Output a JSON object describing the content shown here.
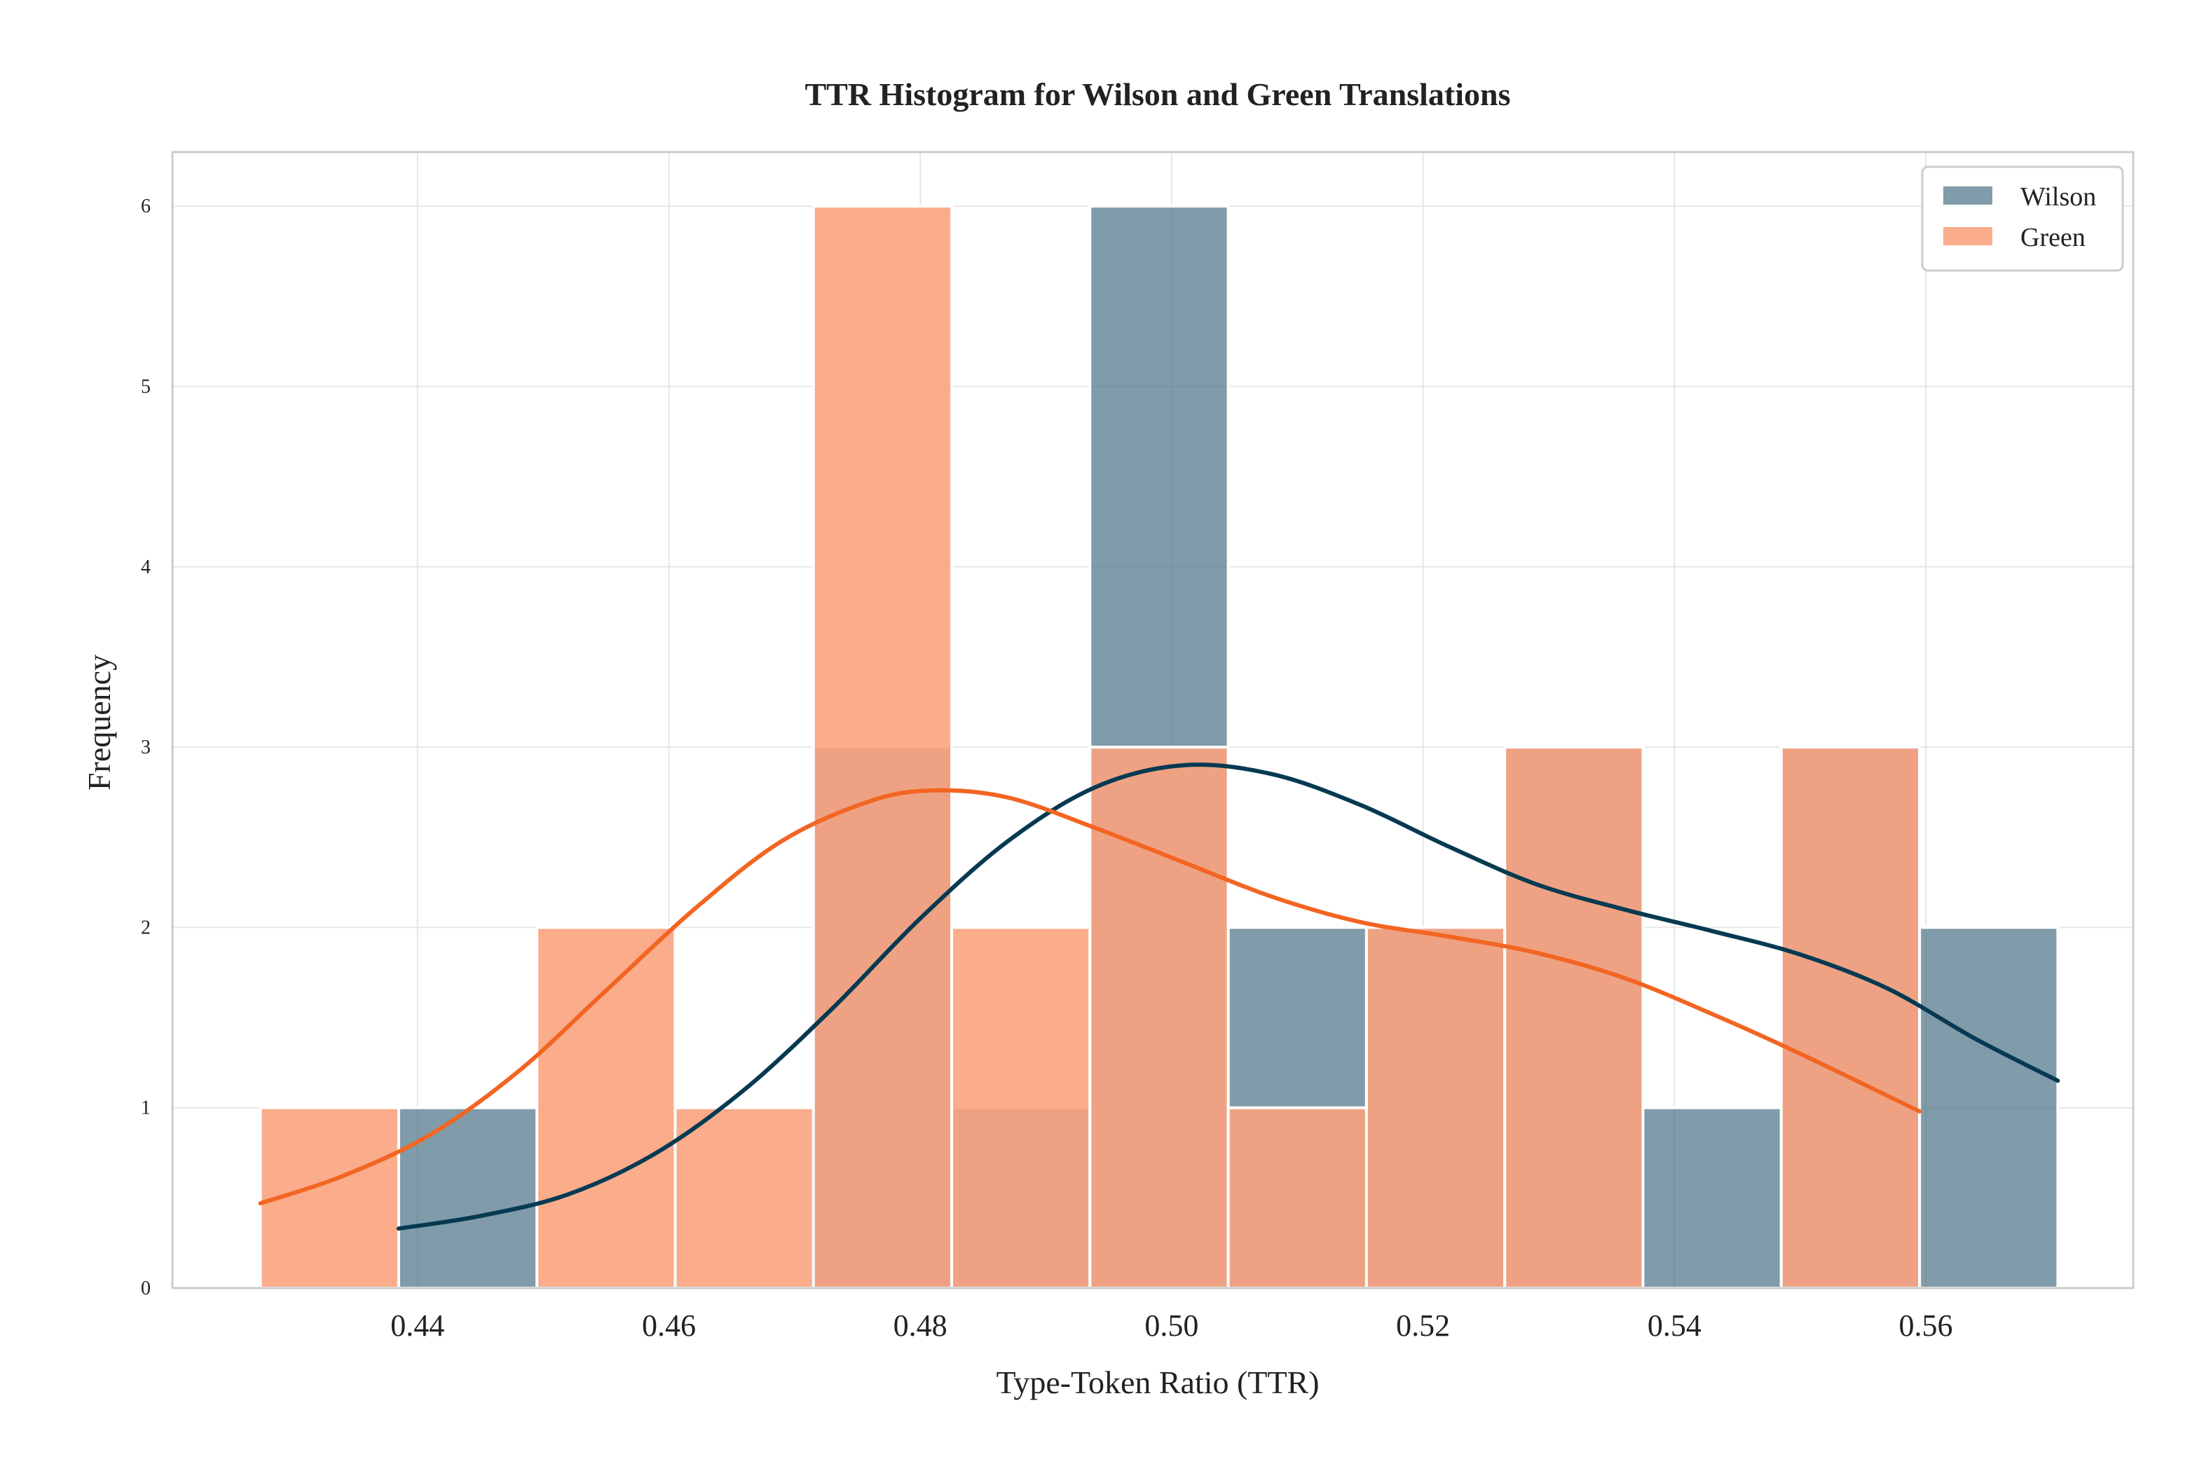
{
  "chart_data": {
    "type": "bar",
    "title": "TTR Histogram for Wilson and Green Translations",
    "xlabel": "Type-Token Ratio (TTR)",
    "ylabel": "Frequency",
    "xlim": [
      0.4205,
      0.5765
    ],
    "ylim": [
      0,
      6.3
    ],
    "xticks": [
      "0.44",
      "0.46",
      "0.48",
      "0.50",
      "0.52",
      "0.54",
      "0.56"
    ],
    "yticks": [
      "0",
      "1",
      "2",
      "3",
      "4",
      "5",
      "6"
    ],
    "grid": true,
    "legend_position": "top-right",
    "series": [
      {
        "name": "Wilson",
        "color": "#4a7184",
        "kde_color": "#073a52",
        "bins": [
          {
            "x0": 0.4385,
            "x1": 0.4495,
            "count": 1
          },
          {
            "x0": 0.4495,
            "x1": 0.4605,
            "count": 0
          },
          {
            "x0": 0.4605,
            "x1": 0.4715,
            "count": 0
          },
          {
            "x0": 0.4715,
            "x1": 0.4825,
            "count": 3
          },
          {
            "x0": 0.4825,
            "x1": 0.4935,
            "count": 1
          },
          {
            "x0": 0.4935,
            "x1": 0.5045,
            "count": 6
          },
          {
            "x0": 0.5045,
            "x1": 0.5155,
            "count": 2
          },
          {
            "x0": 0.5155,
            "x1": 0.5265,
            "count": 2
          },
          {
            "x0": 0.5265,
            "x1": 0.5375,
            "count": 3
          },
          {
            "x0": 0.5375,
            "x1": 0.5485,
            "count": 1
          },
          {
            "x0": 0.5485,
            "x1": 0.5595,
            "count": 3
          },
          {
            "x0": 0.5595,
            "x1": 0.5705,
            "count": 2
          }
        ],
        "kde": [
          [
            0.4385,
            0.33
          ],
          [
            0.445,
            0.4
          ],
          [
            0.452,
            0.52
          ],
          [
            0.459,
            0.75
          ],
          [
            0.466,
            1.1
          ],
          [
            0.473,
            1.55
          ],
          [
            0.48,
            2.05
          ],
          [
            0.487,
            2.48
          ],
          [
            0.494,
            2.78
          ],
          [
            0.501,
            2.9
          ],
          [
            0.508,
            2.85
          ],
          [
            0.515,
            2.68
          ],
          [
            0.522,
            2.45
          ],
          [
            0.529,
            2.24
          ],
          [
            0.536,
            2.1
          ],
          [
            0.543,
            1.98
          ],
          [
            0.55,
            1.85
          ],
          [
            0.557,
            1.66
          ],
          [
            0.564,
            1.38
          ],
          [
            0.5705,
            1.15
          ]
        ]
      },
      {
        "name": "Green",
        "color": "#f9a37e",
        "kde_color": "#f26522",
        "bins": [
          {
            "x0": 0.4275,
            "x1": 0.4385,
            "count": 1
          },
          {
            "x0": 0.4385,
            "x1": 0.4495,
            "count": 0
          },
          {
            "x0": 0.4495,
            "x1": 0.4605,
            "count": 2
          },
          {
            "x0": 0.4605,
            "x1": 0.4715,
            "count": 1
          },
          {
            "x0": 0.4715,
            "x1": 0.4825,
            "count": 6
          },
          {
            "x0": 0.4825,
            "x1": 0.4935,
            "count": 2
          },
          {
            "x0": 0.4935,
            "x1": 0.5045,
            "count": 3
          },
          {
            "x0": 0.5045,
            "x1": 0.5155,
            "count": 1
          },
          {
            "x0": 0.5155,
            "x1": 0.5265,
            "count": 2
          },
          {
            "x0": 0.5265,
            "x1": 0.5375,
            "count": 3
          },
          {
            "x0": 0.5375,
            "x1": 0.5485,
            "count": 0
          },
          {
            "x0": 0.5485,
            "x1": 0.5595,
            "count": 3
          }
        ],
        "kde": [
          [
            0.4275,
            0.47
          ],
          [
            0.434,
            0.62
          ],
          [
            0.441,
            0.85
          ],
          [
            0.448,
            1.2
          ],
          [
            0.455,
            1.65
          ],
          [
            0.462,
            2.1
          ],
          [
            0.469,
            2.48
          ],
          [
            0.476,
            2.7
          ],
          [
            0.481,
            2.76
          ],
          [
            0.487,
            2.72
          ],
          [
            0.494,
            2.55
          ],
          [
            0.501,
            2.36
          ],
          [
            0.508,
            2.17
          ],
          [
            0.515,
            2.03
          ],
          [
            0.522,
            1.95
          ],
          [
            0.529,
            1.86
          ],
          [
            0.536,
            1.72
          ],
          [
            0.543,
            1.52
          ],
          [
            0.55,
            1.3
          ],
          [
            0.5595,
            0.98
          ]
        ]
      }
    ]
  }
}
